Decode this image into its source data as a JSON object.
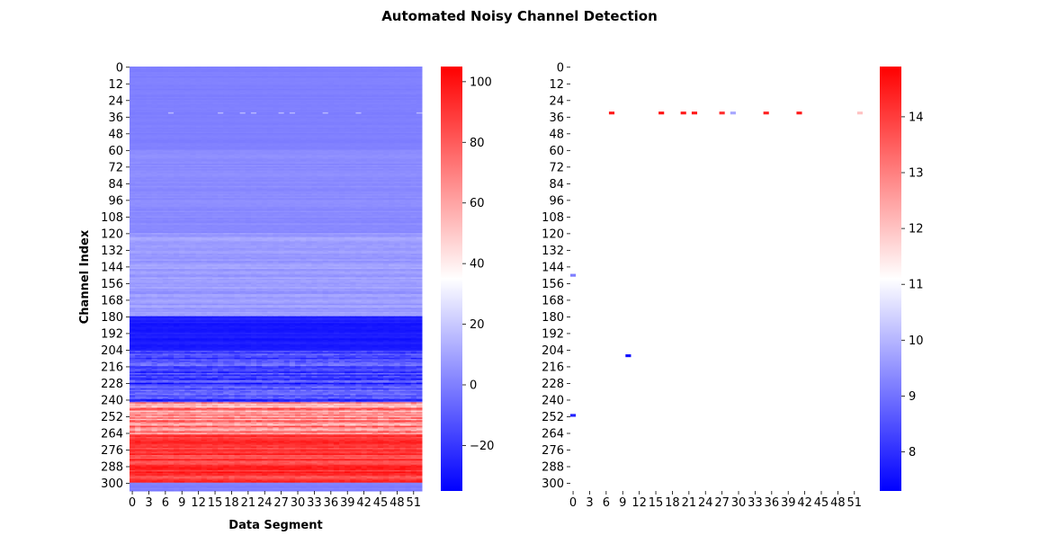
{
  "figure": {
    "title": "Automated Noisy Channel Detection"
  },
  "chart_data": [
    {
      "type": "heatmap",
      "panel": "left",
      "xlabel": "Data Segment",
      "ylabel": "Channel Index",
      "x_ticks": [
        "0",
        "3",
        "6",
        "9",
        "12",
        "15",
        "18",
        "21",
        "24",
        "27",
        "30",
        "33",
        "36",
        "39",
        "42",
        "45",
        "48",
        "51"
      ],
      "y_ticks": [
        "0",
        "12",
        "24",
        "36",
        "48",
        "60",
        "72",
        "84",
        "96",
        "108",
        "120",
        "132",
        "144",
        "156",
        "168",
        "180",
        "192",
        "204",
        "216",
        "228",
        "240",
        "252",
        "264",
        "276",
        "288",
        "300"
      ],
      "n_rows": 306,
      "n_cols": 53,
      "colormap": "bwr",
      "colorbar": {
        "ticks": [
          -20,
          0,
          20,
          40,
          60,
          80,
          100
        ],
        "range": [
          -35,
          105
        ]
      },
      "row_bands": [
        {
          "rows": [
            0,
            60
          ],
          "mean": 0,
          "spread": 2
        },
        {
          "rows": [
            60,
            120
          ],
          "mean": 3,
          "spread": 4
        },
        {
          "rows": [
            120,
            180
          ],
          "mean": 8,
          "spread": 8
        },
        {
          "rows": [
            180,
            205
          ],
          "mean": -28,
          "spread": 6
        },
        {
          "rows": [
            205,
            242
          ],
          "mean": -15,
          "spread": 30
        },
        {
          "rows": [
            242,
            265
          ],
          "mean": 70,
          "spread": 40
        },
        {
          "rows": [
            265,
            300
          ],
          "mean": 90,
          "spread": 20
        },
        {
          "rows": [
            300,
            306
          ],
          "mean": 0,
          "spread": 4
        }
      ],
      "highlights": [
        {
          "row": 33,
          "cols": [
            7,
            16,
            20,
            22,
            27,
            29,
            35,
            41,
            52
          ],
          "value": 15
        }
      ]
    },
    {
      "type": "heatmap",
      "panel": "right",
      "x_ticks": [
        "0",
        "3",
        "6",
        "9",
        "12",
        "15",
        "18",
        "21",
        "24",
        "27",
        "30",
        "33",
        "36",
        "39",
        "42",
        "45",
        "48",
        "51"
      ],
      "y_ticks": [
        "0",
        "12",
        "24",
        "36",
        "48",
        "60",
        "72",
        "84",
        "96",
        "108",
        "120",
        "132",
        "144",
        "156",
        "168",
        "180",
        "192",
        "204",
        "216",
        "228",
        "240",
        "252",
        "264",
        "276",
        "288",
        "300"
      ],
      "n_rows": 306,
      "n_cols": 53,
      "colormap": "bwr",
      "colorbar": {
        "ticks": [
          8,
          9,
          10,
          11,
          12,
          13,
          14
        ],
        "range": [
          7.3,
          14.9
        ]
      },
      "cells": [
        {
          "row": 33,
          "col": 7,
          "value": 14.5
        },
        {
          "row": 33,
          "col": 16,
          "value": 14.6
        },
        {
          "row": 33,
          "col": 20,
          "value": 14.5
        },
        {
          "row": 33,
          "col": 22,
          "value": 14.5
        },
        {
          "row": 33,
          "col": 27,
          "value": 14.2
        },
        {
          "row": 33,
          "col": 29,
          "value": 9.8
        },
        {
          "row": 33,
          "col": 35,
          "value": 14.4
        },
        {
          "row": 33,
          "col": 41,
          "value": 14.5
        },
        {
          "row": 33,
          "col": 52,
          "value": 12.0
        },
        {
          "row": 150,
          "col": 0,
          "value": 9.2
        },
        {
          "row": 208,
          "col": 10,
          "value": 7.5
        },
        {
          "row": 251,
          "col": 0,
          "value": 7.8
        }
      ]
    }
  ]
}
